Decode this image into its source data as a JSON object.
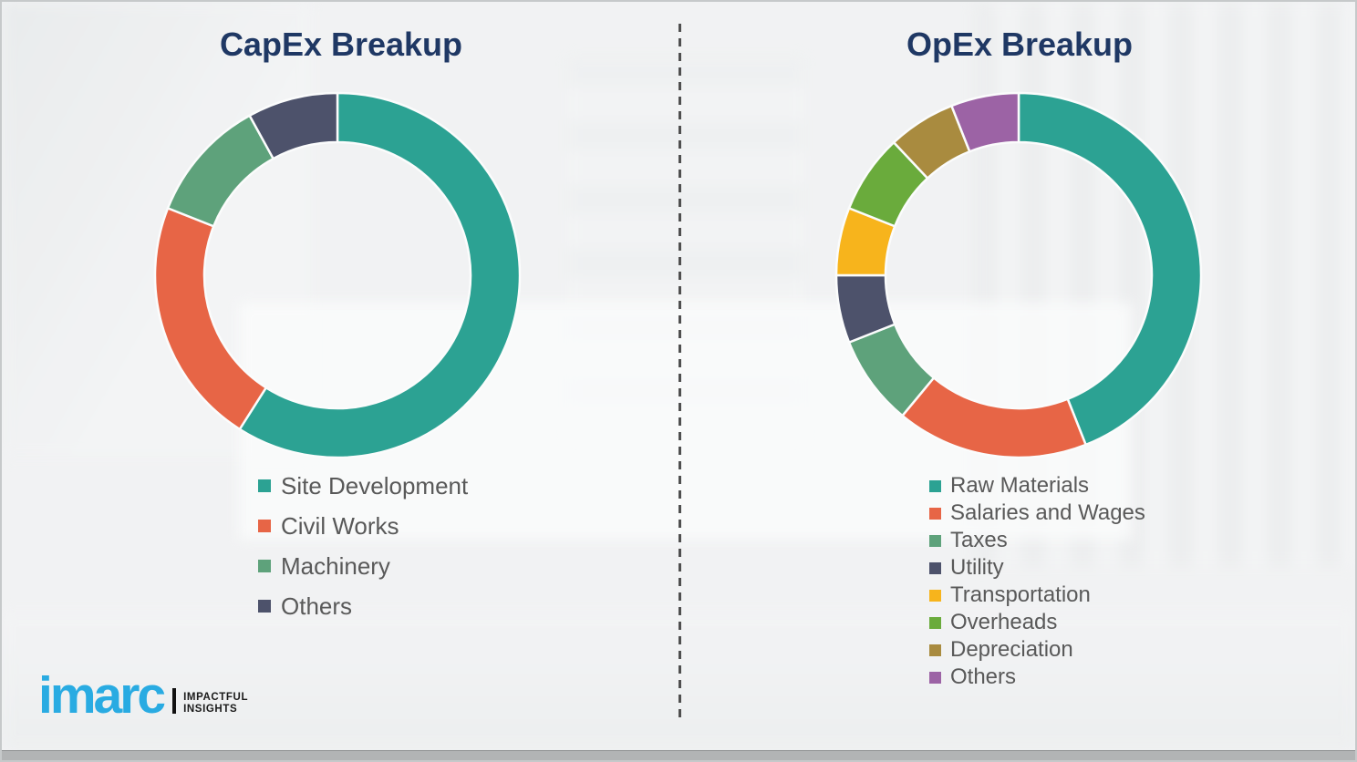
{
  "chart_data": [
    {
      "type": "donut",
      "title": "CapEx Breakup",
      "categories": [
        "Site Development",
        "Civil Works",
        "Machinery",
        "Others"
      ],
      "values": [
        59,
        22,
        11,
        8
      ],
      "value_labels_shown": false,
      "colors": [
        "#2CA293",
        "#E76546",
        "#5EA27B",
        "#4D526B"
      ],
      "legend_position": "below-left",
      "start_angle_deg": 0,
      "direction": "clockwise"
    },
    {
      "type": "donut",
      "title": "OpEx Breakup",
      "categories": [
        "Raw Materials",
        "Salaries and Wages",
        "Taxes",
        "Utility",
        "Transportation",
        "Overheads",
        "Depreciation",
        "Others"
      ],
      "values": [
        44,
        17,
        8,
        6,
        6,
        7,
        6,
        6
      ],
      "value_labels_shown": false,
      "colors": [
        "#2CA293",
        "#E76546",
        "#5EA27B",
        "#4D526B",
        "#F7B41C",
        "#6AAB3C",
        "#A98B3F",
        "#9C63A5"
      ],
      "legend_position": "below-left",
      "start_angle_deg": 0,
      "direction": "clockwise"
    }
  ],
  "styles": {
    "title_color": "#1F3864",
    "legend_text_color": "#595959"
  },
  "logo": {
    "text": "imarc",
    "tagline": [
      "IMPACTFUL",
      "INSIGHTS"
    ],
    "brand_color": "#29ABE2"
  }
}
